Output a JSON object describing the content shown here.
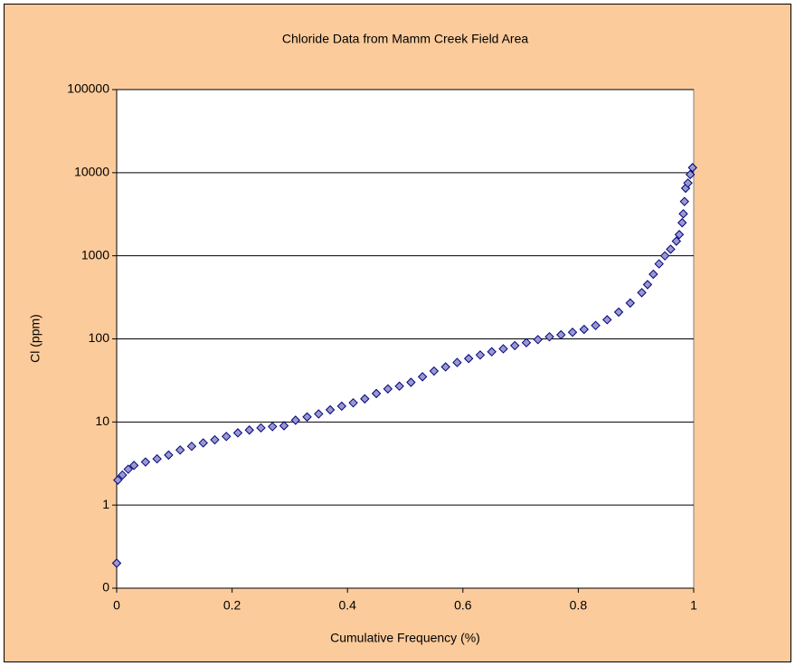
{
  "chart_data": {
    "type": "scatter",
    "title": "Chloride Data from Mamm Creek Field Area",
    "xlabel": "Cumulative Frequency (%)",
    "ylabel": "Cl (ppm)",
    "xlim": [
      0,
      1
    ],
    "xticks": [
      0,
      0.2,
      0.4,
      0.6,
      0.8,
      1
    ],
    "ylim": [
      0.1,
      100000
    ],
    "ylog": true,
    "yticks": [
      {
        "value": 0.1,
        "label": "0"
      },
      1,
      10,
      100,
      1000,
      10000,
      100000
    ],
    "grid": true,
    "color": "#9999cc",
    "edgecolor": "#000080",
    "x": [
      0,
      0.002,
      0.01,
      0.02,
      0.03,
      0.05,
      0.07,
      0.09,
      0.11,
      0.13,
      0.15,
      0.17,
      0.19,
      0.21,
      0.23,
      0.25,
      0.27,
      0.29,
      0.31,
      0.33,
      0.35,
      0.37,
      0.39,
      0.41,
      0.43,
      0.45,
      0.47,
      0.49,
      0.51,
      0.53,
      0.55,
      0.57,
      0.59,
      0.61,
      0.63,
      0.65,
      0.67,
      0.69,
      0.71,
      0.73,
      0.75,
      0.77,
      0.79,
      0.81,
      0.83,
      0.85,
      0.87,
      0.89,
      0.91,
      0.92,
      0.93,
      0.94,
      0.95,
      0.96,
      0.97,
      0.975,
      0.98,
      0.982,
      0.984,
      0.986,
      0.99,
      0.994,
      0.998
    ],
    "values": [
      0.2,
      2.0,
      2.3,
      2.7,
      3.0,
      3.3,
      3.6,
      4.0,
      4.6,
      5.1,
      5.6,
      6.1,
      6.7,
      7.4,
      8.0,
      8.5,
      8.8,
      9.0,
      10.5,
      11.5,
      12.5,
      14,
      15.5,
      17,
      19,
      22,
      25,
      27,
      30,
      35,
      41,
      46,
      52,
      58,
      64,
      70,
      76,
      83,
      90,
      98,
      106,
      112,
      120,
      130,
      145,
      170,
      210,
      270,
      360,
      450,
      600,
      800,
      1000,
      1200,
      1500,
      1800,
      2500,
      3200,
      4500,
      6500,
      7500,
      9500,
      11500
    ]
  }
}
